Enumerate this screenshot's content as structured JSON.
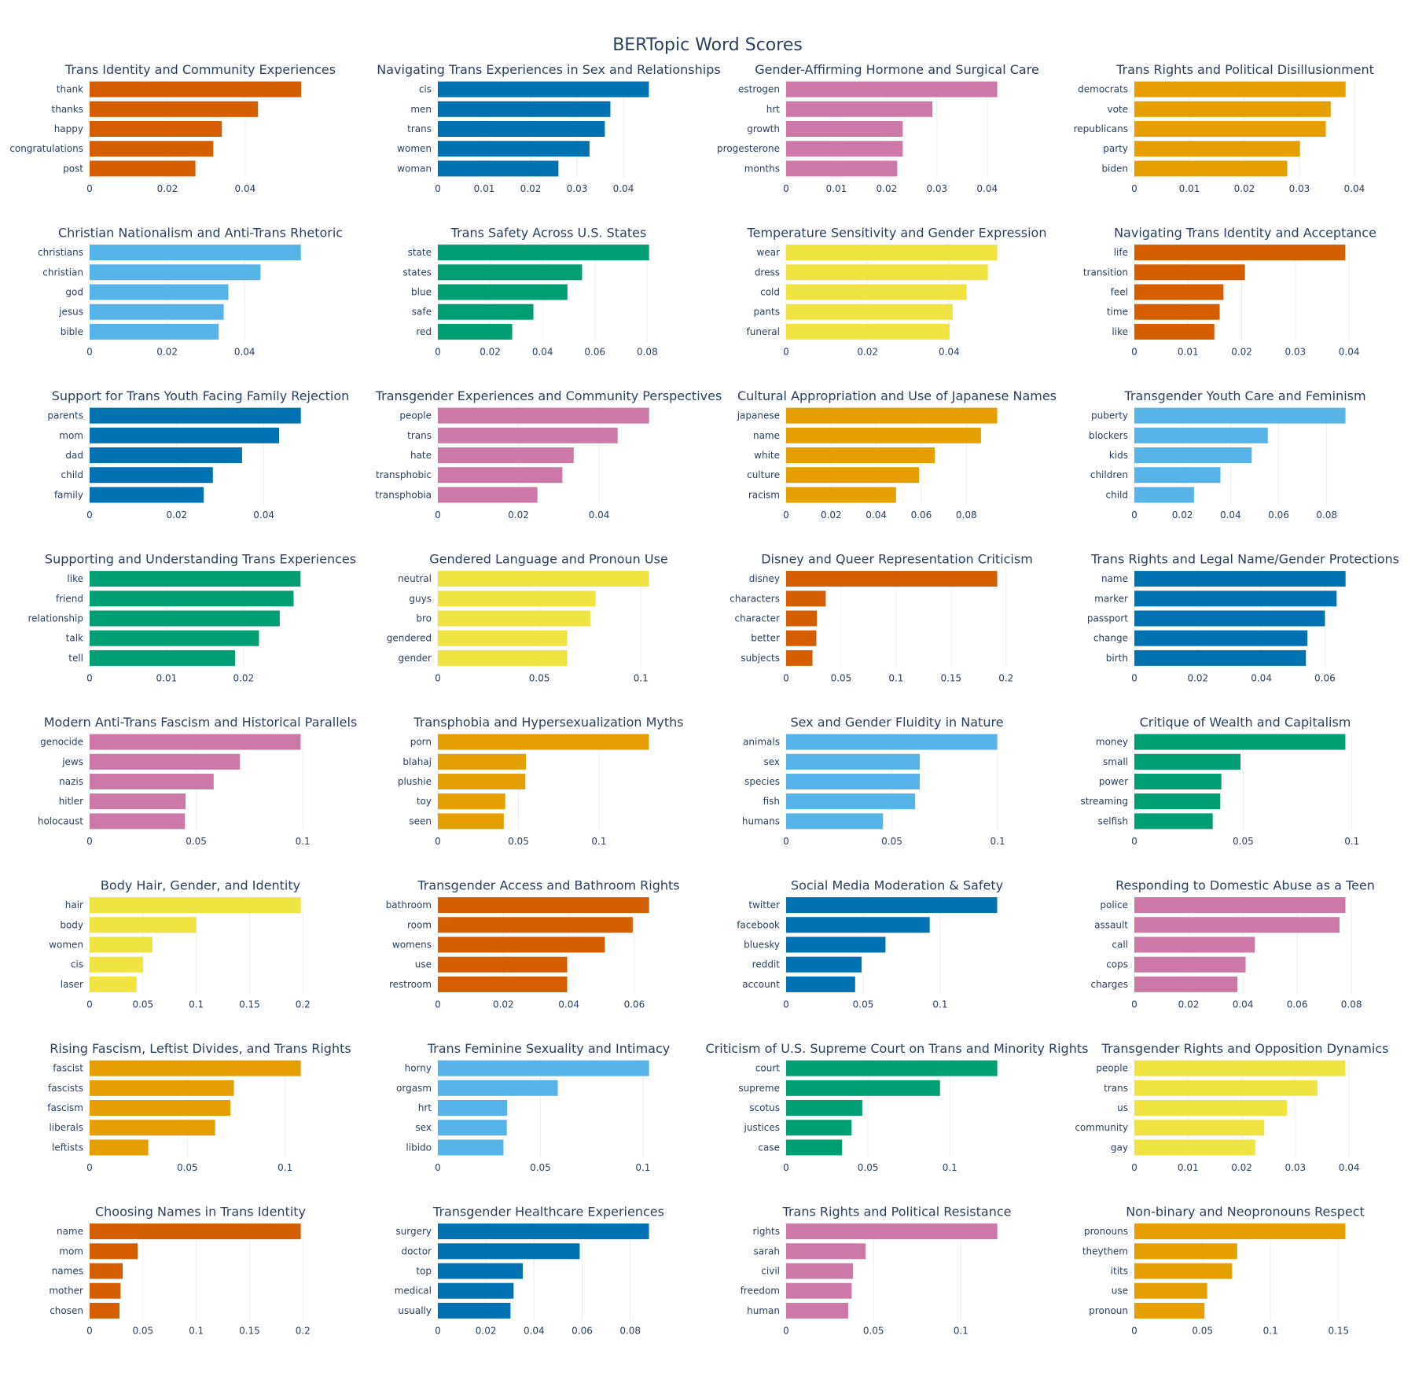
{
  "title": "BERTopic Word Scores",
  "chart_data": [
    {
      "type": "bar",
      "orientation": "horizontal",
      "title": "Trans Identity and Community Experiences",
      "color": "#D55E00",
      "categories": [
        "thank",
        "thanks",
        "happy",
        "congratulations",
        "post"
      ],
      "values": [
        0.0544,
        0.0433,
        0.034,
        0.0318,
        0.0272
      ],
      "xlim": [
        0,
        0.057
      ],
      "xticks": [
        0,
        0.02,
        0.04
      ],
      "xtick_labels": [
        "0",
        "0.02",
        "0.04"
      ]
    },
    {
      "type": "bar",
      "orientation": "horizontal",
      "title": "Navigating Trans Experiences in Sex and Relationships",
      "color": "#0072B2",
      "categories": [
        "cis",
        "men",
        "trans",
        "women",
        "woman"
      ],
      "values": [
        0.0455,
        0.0372,
        0.036,
        0.0327,
        0.026
      ],
      "xlim": [
        0,
        0.0478
      ],
      "xticks": [
        0,
        0.01,
        0.02,
        0.03,
        0.04
      ],
      "xtick_labels": [
        "0",
        "0.01",
        "0.02",
        "0.03",
        "0.04"
      ]
    },
    {
      "type": "bar",
      "orientation": "horizontal",
      "title": "Gender-Affirming Hormone and Surgical Care",
      "color": "#CC79A7",
      "categories": [
        "estrogen",
        "hrt",
        "growth",
        "progesterone",
        "months"
      ],
      "values": [
        0.042,
        0.0291,
        0.0232,
        0.0232,
        0.0221
      ],
      "xlim": [
        0,
        0.0441
      ],
      "xticks": [
        0,
        0.01,
        0.02,
        0.03,
        0.04
      ],
      "xtick_labels": [
        "0",
        "0.01",
        "0.02",
        "0.03",
        "0.04"
      ]
    },
    {
      "type": "bar",
      "orientation": "horizontal",
      "title": "Trans Rights and Political Disillusionment",
      "color": "#E69F00",
      "categories": [
        "democrats",
        "vote",
        "republicans",
        "party",
        "biden"
      ],
      "values": [
        0.0384,
        0.0357,
        0.0348,
        0.0301,
        0.0278
      ],
      "xlim": [
        0,
        0.0403
      ],
      "xticks": [
        0,
        0.01,
        0.02,
        0.03,
        0.04
      ],
      "xtick_labels": [
        "0",
        "0.01",
        "0.02",
        "0.03",
        "0.04"
      ]
    },
    {
      "type": "bar",
      "orientation": "horizontal",
      "title": "Christian Nationalism and Anti-Trans Rhetoric",
      "color": "#56B4E9",
      "categories": [
        "christians",
        "christian",
        "god",
        "jesus",
        "bible"
      ],
      "values": [
        0.0545,
        0.0441,
        0.0358,
        0.0346,
        0.0333
      ],
      "xlim": [
        0,
        0.0572
      ],
      "xticks": [
        0,
        0.02,
        0.04
      ],
      "xtick_labels": [
        "0",
        "0.02",
        "0.04"
      ]
    },
    {
      "type": "bar",
      "orientation": "horizontal",
      "title": "Trans Safety Across U.S. States",
      "color": "#009E73",
      "categories": [
        "state",
        "states",
        "blue",
        "safe",
        "red"
      ],
      "values": [
        0.0807,
        0.0551,
        0.0495,
        0.0365,
        0.0284
      ],
      "xlim": [
        0,
        0.0847
      ],
      "xticks": [
        0,
        0.02,
        0.04,
        0.06,
        0.08
      ],
      "xtick_labels": [
        "0",
        "0.02",
        "0.04",
        "0.06",
        "0.08"
      ]
    },
    {
      "type": "bar",
      "orientation": "horizontal",
      "title": "Temperature Sensitivity and Gender Expression",
      "color": "#F0E442",
      "categories": [
        "wear",
        "dress",
        "cold",
        "pants",
        "funeral"
      ],
      "values": [
        0.0518,
        0.0495,
        0.0443,
        0.0409,
        0.0401
      ],
      "xlim": [
        0,
        0.0544
      ],
      "xticks": [
        0,
        0.02,
        0.04
      ],
      "xtick_labels": [
        "0",
        "0.02",
        "0.04"
      ]
    },
    {
      "type": "bar",
      "orientation": "horizontal",
      "title": "Navigating Trans Identity and Acceptance",
      "color": "#D55E00",
      "categories": [
        "life",
        "transition",
        "feel",
        "time",
        "like"
      ],
      "values": [
        0.0393,
        0.0206,
        0.0166,
        0.0159,
        0.0149
      ],
      "xlim": [
        0,
        0.0413
      ],
      "xticks": [
        0,
        0.01,
        0.02,
        0.03,
        0.04
      ],
      "xtick_labels": [
        "0",
        "0.01",
        "0.02",
        "0.03",
        "0.04"
      ]
    },
    {
      "type": "bar",
      "orientation": "horizontal",
      "title": "Support for Trans Youth Facing Family Rejection",
      "color": "#0072B2",
      "categories": [
        "parents",
        "mom",
        "dad",
        "child",
        "family"
      ],
      "values": [
        0.0485,
        0.0435,
        0.035,
        0.0283,
        0.0262
      ],
      "xlim": [
        0,
        0.0509
      ],
      "xticks": [
        0,
        0.02,
        0.04
      ],
      "xtick_labels": [
        "0",
        "0.02",
        "0.04"
      ]
    },
    {
      "type": "bar",
      "orientation": "horizontal",
      "title": "Transgender Experiences and Community Perspectives",
      "color": "#CC79A7",
      "categories": [
        "people",
        "trans",
        "hate",
        "transphobic",
        "transphobia"
      ],
      "values": [
        0.0524,
        0.0446,
        0.0337,
        0.0309,
        0.0247
      ],
      "xlim": [
        0,
        0.055
      ],
      "xticks": [
        0,
        0.02,
        0.04
      ],
      "xtick_labels": [
        "0",
        "0.02",
        "0.04"
      ]
    },
    {
      "type": "bar",
      "orientation": "horizontal",
      "title": "Cultural Appropriation and Use of Japanese Names",
      "color": "#E69F00",
      "categories": [
        "japanese",
        "name",
        "white",
        "culture",
        "racism"
      ],
      "values": [
        0.0937,
        0.0865,
        0.066,
        0.059,
        0.0488
      ],
      "xlim": [
        0,
        0.0984
      ],
      "xticks": [
        0,
        0.02,
        0.04,
        0.06,
        0.08
      ],
      "xtick_labels": [
        "0",
        "0.02",
        "0.04",
        "0.06",
        "0.08"
      ]
    },
    {
      "type": "bar",
      "orientation": "horizontal",
      "title": "Transgender Youth Care and Feminism",
      "color": "#56B4E9",
      "categories": [
        "puberty",
        "blockers",
        "kids",
        "children",
        "child"
      ],
      "values": [
        0.0878,
        0.0555,
        0.0488,
        0.0358,
        0.0248
      ],
      "xlim": [
        0,
        0.0922
      ],
      "xticks": [
        0,
        0.02,
        0.04,
        0.06,
        0.08
      ],
      "xtick_labels": [
        "0",
        "0.02",
        "0.04",
        "0.06",
        "0.08"
      ]
    },
    {
      "type": "bar",
      "orientation": "horizontal",
      "title": "Supporting and Understanding Trans Experiences",
      "color": "#009E73",
      "categories": [
        "like",
        "friend",
        "relationship",
        "talk",
        "tell"
      ],
      "values": [
        0.0274,
        0.0265,
        0.0247,
        0.022,
        0.0189
      ],
      "xlim": [
        0,
        0.0288
      ],
      "xticks": [
        0,
        0.01,
        0.02
      ],
      "xtick_labels": [
        "0",
        "0.01",
        "0.02"
      ]
    },
    {
      "type": "bar",
      "orientation": "horizontal",
      "title": "Gendered Language and Pronoun Use",
      "color": "#F0E442",
      "categories": [
        "neutral",
        "guys",
        "bro",
        "gendered",
        "gender"
      ],
      "values": [
        0.104,
        0.0777,
        0.0751,
        0.0637,
        0.0637
      ],
      "xlim": [
        0,
        0.1092
      ],
      "xticks": [
        0,
        0.05,
        0.1
      ],
      "xtick_labels": [
        "0",
        "0.05",
        "0.1"
      ]
    },
    {
      "type": "bar",
      "orientation": "horizontal",
      "title": "Disney and Queer Representation Criticism",
      "color": "#D55E00",
      "categories": [
        "disney",
        "characters",
        "character",
        "better",
        "subjects"
      ],
      "values": [
        0.192,
        0.036,
        0.028,
        0.0275,
        0.024
      ],
      "xlim": [
        0,
        0.2016
      ],
      "xticks": [
        0,
        0.05,
        0.1,
        0.15,
        0.2
      ],
      "xtick_labels": [
        "0",
        "0.05",
        "0.1",
        "0.15",
        "0.2"
      ]
    },
    {
      "type": "bar",
      "orientation": "horizontal",
      "title": "Trans Rights and Legal Name/Gender Protections",
      "color": "#0072B2",
      "categories": [
        "name",
        "marker",
        "passport",
        "change",
        "birth"
      ],
      "values": [
        0.0665,
        0.0637,
        0.06,
        0.0545,
        0.054
      ],
      "xlim": [
        0,
        0.0698
      ],
      "xticks": [
        0,
        0.02,
        0.04,
        0.06
      ],
      "xtick_labels": [
        "0",
        "0.02",
        "0.04",
        "0.06"
      ]
    },
    {
      "type": "bar",
      "orientation": "horizontal",
      "title": "Modern Anti-Trans Fascism and Historical Parallels",
      "color": "#CC79A7",
      "categories": [
        "genocide",
        "jews",
        "nazis",
        "hitler",
        "holocaust"
      ],
      "values": [
        0.099,
        0.0705,
        0.0582,
        0.045,
        0.0447
      ],
      "xlim": [
        0,
        0.104
      ],
      "xticks": [
        0,
        0.05,
        0.1
      ],
      "xtick_labels": [
        "0",
        "0.05",
        "0.1"
      ]
    },
    {
      "type": "bar",
      "orientation": "horizontal",
      "title": "Transphobia and Hypersexualization Myths",
      "color": "#E69F00",
      "categories": [
        "porn",
        "blahaj",
        "plushie",
        "toy",
        "seen"
      ],
      "values": [
        0.131,
        0.0547,
        0.0543,
        0.0418,
        0.0409
      ],
      "xlim": [
        0,
        0.1376
      ],
      "xticks": [
        0,
        0.05,
        0.1
      ],
      "xtick_labels": [
        "0",
        "0.05",
        "0.1"
      ]
    },
    {
      "type": "bar",
      "orientation": "horizontal",
      "title": "Sex and Gender Fluidity in Nature",
      "color": "#56B4E9",
      "categories": [
        "animals",
        "sex",
        "species",
        "fish",
        "humans"
      ],
      "values": [
        0.0998,
        0.0632,
        0.0632,
        0.061,
        0.0458
      ],
      "xlim": [
        0,
        0.1048
      ],
      "xticks": [
        0,
        0.05,
        0.1
      ],
      "xtick_labels": [
        "0",
        "0.05",
        "0.1"
      ]
    },
    {
      "type": "bar",
      "orientation": "horizontal",
      "title": "Critique of Wealth and Capitalism",
      "color": "#009E73",
      "categories": [
        "money",
        "small",
        "power",
        "streaming",
        "selfish"
      ],
      "values": [
        0.097,
        0.0488,
        0.04,
        0.0395,
        0.036
      ],
      "xlim": [
        0,
        0.1019
      ],
      "xticks": [
        0,
        0.05,
        0.1
      ],
      "xtick_labels": [
        "0",
        "0.05",
        "0.1"
      ]
    },
    {
      "type": "bar",
      "orientation": "horizontal",
      "title": "Body Hair, Gender, and Identity",
      "color": "#F0E442",
      "categories": [
        "hair",
        "body",
        "women",
        "cis",
        "laser"
      ],
      "values": [
        0.198,
        0.1,
        0.059,
        0.05,
        0.044
      ],
      "xlim": [
        0,
        0.2079
      ],
      "xticks": [
        0,
        0.05,
        0.1,
        0.15,
        0.2
      ],
      "xtick_labels": [
        "0",
        "0.05",
        "0.1",
        "0.15",
        "0.2"
      ]
    },
    {
      "type": "bar",
      "orientation": "horizontal",
      "title": "Transgender Access and Bathroom Rights",
      "color": "#D55E00",
      "categories": [
        "bathroom",
        "room",
        "womens",
        "use",
        "restroom"
      ],
      "values": [
        0.0645,
        0.0595,
        0.051,
        0.0395,
        0.0395
      ],
      "xlim": [
        0,
        0.0677
      ],
      "xticks": [
        0,
        0.02,
        0.04,
        0.06
      ],
      "xtick_labels": [
        "0",
        "0.02",
        "0.04",
        "0.06"
      ]
    },
    {
      "type": "bar",
      "orientation": "horizontal",
      "title": "Social Media Moderation & Safety",
      "color": "#0072B2",
      "categories": [
        "twitter",
        "facebook",
        "bluesky",
        "reddit",
        "account"
      ],
      "values": [
        0.137,
        0.0932,
        0.0645,
        0.049,
        0.0448
      ],
      "xlim": [
        0,
        0.1439
      ],
      "xticks": [
        0,
        0.05,
        0.1
      ],
      "xtick_labels": [
        "0",
        "0.05",
        "0.1"
      ]
    },
    {
      "type": "bar",
      "orientation": "horizontal",
      "title": "Responding to Domestic Abuse as a Teen",
      "color": "#CC79A7",
      "categories": [
        "police",
        "assault",
        "call",
        "cops",
        "charges"
      ],
      "values": [
        0.0778,
        0.0756,
        0.0444,
        0.041,
        0.038
      ],
      "xlim": [
        0,
        0.0817
      ],
      "xticks": [
        0,
        0.02,
        0.04,
        0.06,
        0.08
      ],
      "xtick_labels": [
        "0",
        "0.02",
        "0.04",
        "0.06",
        "0.08"
      ]
    },
    {
      "type": "bar",
      "orientation": "horizontal",
      "title": "Rising Fascism, Leftist Divides, and Trans Rights",
      "color": "#E69F00",
      "categories": [
        "fascist",
        "fascists",
        "fascism",
        "liberals",
        "leftists"
      ],
      "values": [
        0.108,
        0.0738,
        0.072,
        0.0642,
        0.03
      ],
      "xlim": [
        0,
        0.1134
      ],
      "xticks": [
        0,
        0.05,
        0.1
      ],
      "xtick_labels": [
        "0",
        "0.05",
        "0.1"
      ]
    },
    {
      "type": "bar",
      "orientation": "horizontal",
      "title": "Trans Feminine Sexuality and Intimacy",
      "color": "#56B4E9",
      "categories": [
        "horny",
        "orgasm",
        "hrt",
        "sex",
        "libido"
      ],
      "values": [
        0.103,
        0.0585,
        0.0338,
        0.0336,
        0.032
      ],
      "xlim": [
        0,
        0.1081
      ],
      "xticks": [
        0,
        0.05,
        0.1
      ],
      "xtick_labels": [
        "0",
        "0.05",
        "0.1"
      ]
    },
    {
      "type": "bar",
      "orientation": "horizontal",
      "title": "Criticism of U.S. Supreme Court on Trans and Minority Rights",
      "color": "#009E73",
      "categories": [
        "court",
        "supreme",
        "scotus",
        "justices",
        "case"
      ],
      "values": [
        0.129,
        0.094,
        0.0465,
        0.04,
        0.0342
      ],
      "xlim": [
        0,
        0.1354
      ],
      "xticks": [
        0,
        0.05,
        0.1
      ],
      "xtick_labels": [
        "0",
        "0.05",
        "0.1"
      ]
    },
    {
      "type": "bar",
      "orientation": "horizontal",
      "title": "Transgender Rights and Opposition Dynamics",
      "color": "#F0E442",
      "categories": [
        "people",
        "trans",
        "us",
        "community",
        "gay"
      ],
      "values": [
        0.0393,
        0.0341,
        0.0284,
        0.0242,
        0.0225
      ],
      "xlim": [
        0,
        0.0413
      ],
      "xticks": [
        0,
        0.01,
        0.02,
        0.03,
        0.04
      ],
      "xtick_labels": [
        "0",
        "0.01",
        "0.02",
        "0.03",
        "0.04"
      ]
    },
    {
      "type": "bar",
      "orientation": "horizontal",
      "title": "Choosing Names in Trans Identity",
      "color": "#D55E00",
      "categories": [
        "name",
        "mom",
        "names",
        "mother",
        "chosen"
      ],
      "values": [
        0.198,
        0.045,
        0.031,
        0.029,
        0.028
      ],
      "xlim": [
        0,
        0.2079
      ],
      "xticks": [
        0,
        0.05,
        0.1,
        0.15,
        0.2
      ],
      "xtick_labels": [
        "0",
        "0.05",
        "0.1",
        "0.15",
        "0.2"
      ]
    },
    {
      "type": "bar",
      "orientation": "horizontal",
      "title": "Transgender Healthcare Experiences",
      "color": "#0072B2",
      "categories": [
        "surgery",
        "doctor",
        "top",
        "medical",
        "usually"
      ],
      "values": [
        0.0878,
        0.059,
        0.0353,
        0.0315,
        0.0302
      ],
      "xlim": [
        0,
        0.0922
      ],
      "xticks": [
        0,
        0.02,
        0.04,
        0.06,
        0.08
      ],
      "xtick_labels": [
        "0",
        "0.02",
        "0.04",
        "0.06",
        "0.08"
      ]
    },
    {
      "type": "bar",
      "orientation": "horizontal",
      "title": "Trans Rights and Political Resistance",
      "color": "#CC79A7",
      "categories": [
        "rights",
        "sarah",
        "civil",
        "freedom",
        "human"
      ],
      "values": [
        0.1208,
        0.0455,
        0.0382,
        0.0375,
        0.0355
      ],
      "xlim": [
        0,
        0.1268
      ],
      "xticks": [
        0,
        0.05,
        0.1
      ],
      "xtick_labels": [
        "0",
        "0.05",
        "0.1"
      ]
    },
    {
      "type": "bar",
      "orientation": "horizontal",
      "title": "Non-binary and Neopronouns Respect",
      "color": "#E69F00",
      "categories": [
        "pronouns",
        "theythem",
        "itits",
        "use",
        "pronoun"
      ],
      "values": [
        0.155,
        0.0755,
        0.0718,
        0.0535,
        0.0515
      ],
      "xlim": [
        0,
        0.1628
      ],
      "xticks": [
        0,
        0.05,
        0.1,
        0.15
      ],
      "xtick_labels": [
        "0",
        "0.05",
        "0.1",
        "0.15"
      ]
    }
  ]
}
